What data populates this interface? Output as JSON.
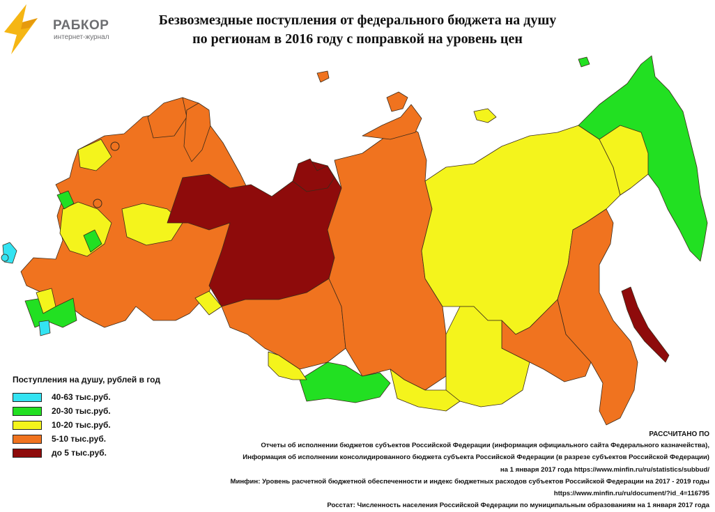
{
  "logo": {
    "name": "РАБКОР",
    "subtitle": "интернет-журнал"
  },
  "title": {
    "line1": "Безвозмездные поступления от федерального бюджета на душу",
    "line2": "по регионам в 2016 году с поправкой на уровень цен"
  },
  "legend": {
    "title": "Поступления на душу, рублей в год",
    "items": [
      {
        "label": "40-63 тыс.руб.",
        "color": "#33e3f2"
      },
      {
        "label": "20-30 тыс.руб.",
        "color": "#22e022"
      },
      {
        "label": "10-20 тыс.руб.",
        "color": "#f4f41c"
      },
      {
        "label": "5-10 тыс.руб.",
        "color": "#f0731f"
      },
      {
        "label": "до 5 тыс.руб.",
        "color": "#8e0b0b"
      }
    ]
  },
  "sources": {
    "heading": "РАССЧИТАНО ПО",
    "lines": [
      "Отчеты об исполнении бюджетов субъектов Российской Федерации (информация официального сайта Федерального казначейства),",
      "Информация об исполнении консолидированного бюджета субъекта Российской Федерации (в разрезе субъектов Российской Федерации)",
      "на 1 января 2017 года https://www.minfin.ru/ru/statistics/subbud/",
      "Минфин: Уровень расчетной бюджетной обеспеченности и индекс бюджетных расходов субъектов Российской Федерации на 2017 - 2019 годы",
      "https://www.minfin.ru/ru/document/?id_4=116795",
      "Росстат: Численность населения Российской Федерации по муниципальным образованиям на 1 января 2017 года"
    ]
  }
}
